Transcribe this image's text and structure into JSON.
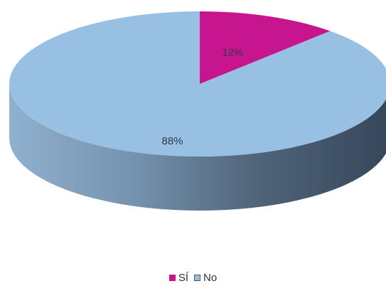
{
  "chart_data": {
    "type": "pie",
    "style": "3d",
    "categories": [
      "SÍ",
      "No"
    ],
    "values": [
      12,
      88
    ],
    "labels": [
      "12%",
      "88%"
    ],
    "colors": {
      "SÍ": {
        "top": "#c7148f"
      },
      "No": {
        "top": "#98c0e3",
        "side_light": "#95b4d2",
        "side_dark": "#3b4b5d"
      }
    },
    "label_color": "#2e3a4b",
    "title": "",
    "legend_position": "bottom"
  }
}
